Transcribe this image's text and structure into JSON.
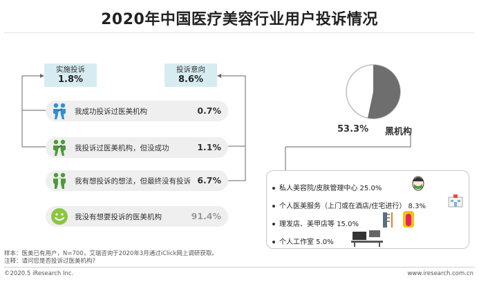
{
  "title": "2020年中国医疗美容行业用户投诉情况",
  "stats": {
    "implemented": {
      "label": "实施投诉",
      "value": "1.8%"
    },
    "intention": {
      "label": "投诉意向",
      "value": "8.6%"
    }
  },
  "rows": [
    {
      "text": "我成功投诉过医美机构",
      "value": "0.7%"
    },
    {
      "text": "我投诉过医美机构，但没成功",
      "value": "1.1%"
    },
    {
      "text": "我有想投诉的想法，但最终没有投诉",
      "value": "6.7%"
    },
    {
      "text": "我没有想要投诉的医美机构",
      "value": "91.4%"
    }
  ],
  "pie": {
    "value": "53.3%",
    "label": "黑机构"
  },
  "details": [
    {
      "text": "私人美容院/皮肤管理中心 25.0%"
    },
    {
      "text": "个人医美服务（上门或在酒店/住宅进行） 8.3%"
    },
    {
      "text": "理发店、美甲店等 15.0%"
    },
    {
      "text": "个人工作室 5.0%"
    }
  ],
  "footnotes": {
    "sample": "样本：医美已有用户，N=700，艾瑞咨询于2020年3月通过iClick网上调研获取。",
    "remark": "注释：请问您是否投诉过医美机构?"
  },
  "footer": {
    "copyright": "©2020.5 iResearch Inc.",
    "site": "www.iresearch.com.cn"
  },
  "colors": {
    "blue": "#2f8fd0",
    "green": "#4e9a3a",
    "light_green": "#8cc63f",
    "pie_dark": "#6e6e6e",
    "stat_box": "#d7ecf1"
  },
  "chart_data": {
    "type": "pie",
    "title": "2020年中国医疗美容行业用户投诉情况",
    "complaint_experience": {
      "categories": [
        "我成功投诉过医美机构",
        "我投诉过医美机构，但没成功",
        "我有想投诉的想法，但最终没有投诉",
        "我没有想要投诉的医美机构"
      ],
      "values": [
        0.7,
        1.1,
        6.7,
        91.4
      ]
    },
    "summary": {
      "categories": [
        "实施投诉",
        "投诉意向"
      ],
      "values": [
        1.8,
        8.6
      ]
    },
    "black_institution_share": 53.3,
    "black_institution_breakdown": {
      "categories": [
        "私人美容院/皮肤管理中心",
        "个人医美服务（上门或在酒店/住宅进行）",
        "理发店、美甲店等",
        "个人工作室"
      ],
      "values": [
        25.0,
        8.3,
        15.0,
        5.0
      ]
    }
  }
}
